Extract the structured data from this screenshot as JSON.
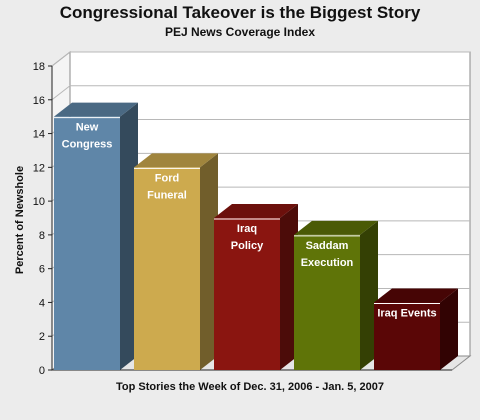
{
  "title": "Congressional Takeover is the Biggest Story",
  "subtitle": "PEJ News Coverage Index",
  "chart_data": {
    "type": "bar",
    "title": "Congressional Takeover is the Biggest Story",
    "subtitle": "PEJ News Coverage Index",
    "xlabel": "Top Stories the Week of Dec. 31, 2006 - Jan. 5, 2007",
    "ylabel": "Percent of Newshole",
    "ylim": [
      0,
      18
    ],
    "yticks": [
      0,
      2,
      4,
      6,
      8,
      10,
      12,
      14,
      16,
      18
    ],
    "grid": true,
    "categories": [
      [
        "New",
        "Congress"
      ],
      [
        "Ford",
        "Funeral"
      ],
      [
        "Iraq",
        "Policy"
      ],
      [
        "Saddam",
        "Execution"
      ],
      [
        "Iraq Events"
      ]
    ],
    "values": [
      15,
      12,
      9,
      8,
      4
    ],
    "colors": [
      "#5f86a8",
      "#cdaa4e",
      "#8a1510",
      "#5f7408",
      "#5a0606"
    ]
  }
}
